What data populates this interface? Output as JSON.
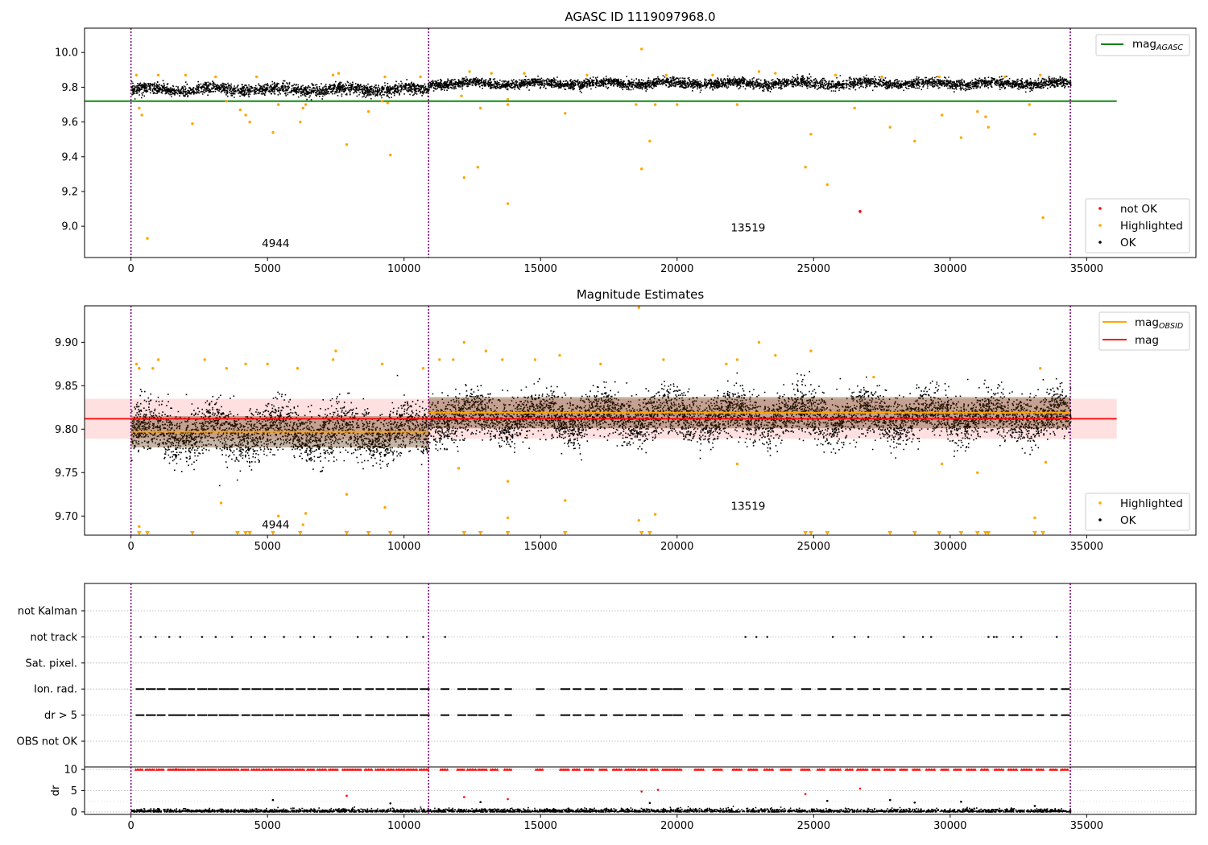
{
  "chart_data": [
    {
      "type": "scatter",
      "title": "AGASC ID 1119097968.0",
      "xlim": [
        -1700,
        39000
      ],
      "ylim": [
        8.82,
        10.14
      ],
      "xticks": [
        0,
        5000,
        10000,
        15000,
        20000,
        25000,
        30000,
        35000
      ],
      "xtick_labels": [
        "0",
        "5000",
        "10000",
        "15000",
        "20000",
        "25000",
        "30000",
        "35000"
      ],
      "yticks": [
        9.0,
        9.2,
        9.4,
        9.6,
        9.8,
        10.0
      ],
      "ytick_labels": [
        "9.0",
        "9.2",
        "9.4",
        "9.6",
        "9.8",
        "10.0"
      ],
      "obs_boundaries": [
        0,
        10900,
        34400
      ],
      "obs_labels": [
        {
          "text": "4944",
          "x": 5300,
          "y": 8.88
        },
        {
          "text": "13519",
          "x": 22600,
          "y": 8.97
        }
      ],
      "reference_lines": [
        {
          "name": "mag_AGASC",
          "y": 9.72,
          "x": [
            -1700,
            36100
          ],
          "color": "#008000"
        }
      ],
      "ok_bands": [
        {
          "x": [
            0,
            10900
          ],
          "center": 9.79,
          "spread": 0.03
        },
        {
          "x": [
            10900,
            34400
          ],
          "center": 9.825,
          "spread": 0.025
        }
      ],
      "series": [
        {
          "name": "not OK",
          "color": "#ff0000",
          "points": [
            [
              26700,
              9.085
            ]
          ]
        },
        {
          "name": "Highlighted",
          "color": "#ffa500",
          "points": [
            [
              600,
              8.93
            ],
            [
              2250,
              9.59
            ],
            [
              4350,
              9.6
            ],
            [
              5200,
              9.54
            ],
            [
              6200,
              9.6
            ],
            [
              7900,
              9.47
            ],
            [
              9500,
              9.41
            ],
            [
              12200,
              9.28
            ],
            [
              12700,
              9.34
            ],
            [
              13800,
              9.13
            ],
            [
              18700,
              9.33
            ],
            [
              19000,
              9.49
            ],
            [
              18700,
              10.02
            ],
            [
              15900,
              9.65
            ],
            [
              24700,
              9.34
            ],
            [
              24900,
              9.53
            ],
            [
              25500,
              9.24
            ],
            [
              27800,
              9.57
            ],
            [
              28700,
              9.49
            ],
            [
              30400,
              9.51
            ],
            [
              31400,
              9.57
            ],
            [
              33100,
              9.53
            ],
            [
              33400,
              9.05
            ],
            [
              300,
              9.68
            ],
            [
              400,
              9.64
            ],
            [
              3500,
              9.72
            ],
            [
              4200,
              9.64
            ],
            [
              4000,
              9.67
            ],
            [
              5400,
              9.7
            ],
            [
              6300,
              9.68
            ],
            [
              6400,
              9.7
            ],
            [
              8700,
              9.66
            ],
            [
              9400,
              9.71
            ],
            [
              9200,
              9.72
            ],
            [
              12100,
              9.75
            ],
            [
              12800,
              9.68
            ],
            [
              13800,
              9.7
            ],
            [
              13800,
              9.73
            ],
            [
              18500,
              9.7
            ],
            [
              19200,
              9.7
            ],
            [
              20000,
              9.7
            ],
            [
              22200,
              9.7
            ],
            [
              26500,
              9.68
            ],
            [
              29700,
              9.64
            ],
            [
              31000,
              9.66
            ],
            [
              31300,
              9.63
            ],
            [
              32900,
              9.7
            ],
            [
              200,
              9.87
            ],
            [
              1000,
              9.87
            ],
            [
              2000,
              9.87
            ],
            [
              3100,
              9.86
            ],
            [
              4600,
              9.86
            ],
            [
              7400,
              9.87
            ],
            [
              7600,
              9.88
            ],
            [
              9300,
              9.86
            ],
            [
              10600,
              9.86
            ],
            [
              12400,
              9.89
            ],
            [
              13200,
              9.88
            ],
            [
              14400,
              9.88
            ],
            [
              16700,
              9.87
            ],
            [
              19600,
              9.87
            ],
            [
              21300,
              9.87
            ],
            [
              23000,
              9.89
            ],
            [
              23600,
              9.88
            ],
            [
              25800,
              9.87
            ],
            [
              27500,
              9.86
            ],
            [
              29600,
              9.86
            ],
            [
              32000,
              9.86
            ],
            [
              33300,
              9.87
            ]
          ]
        },
        {
          "name": "OK",
          "color": "#000000",
          "points": []
        }
      ],
      "legend": {
        "position": "lower right",
        "entries": [
          "not OK",
          "Highlighted",
          "OK"
        ]
      },
      "legend_lines": {
        "position": "upper right",
        "entries": [
          {
            "label": "mag",
            "sub": "AGASC",
            "color": "#008000"
          }
        ]
      }
    },
    {
      "type": "scatter",
      "title": "Magnitude Estimates",
      "xlim": [
        -1700,
        39000
      ],
      "ylim": [
        9.678,
        9.942
      ],
      "xticks": [
        0,
        5000,
        10000,
        15000,
        20000,
        25000,
        30000,
        35000
      ],
      "xtick_labels": [
        "0",
        "5000",
        "10000",
        "15000",
        "20000",
        "25000",
        "30000",
        "35000"
      ],
      "yticks": [
        9.7,
        9.75,
        9.8,
        9.85,
        9.9
      ],
      "ytick_labels": [
        "9.70",
        "9.75",
        "9.80",
        "9.85",
        "9.90"
      ],
      "obs_boundaries": [
        0,
        10900,
        34400
      ],
      "obs_labels": [
        {
          "text": "4944",
          "x": 5300,
          "y": 9.686
        },
        {
          "text": "13519",
          "x": 22600,
          "y": 9.707
        }
      ],
      "mag_line": {
        "name": "mag",
        "y": 9.812,
        "band": [
          9.789,
          9.835
        ],
        "x": [
          -1700,
          36100
        ],
        "color": "#ff0000"
      },
      "obsid_lines": [
        {
          "name": "mag_OBSID",
          "x": [
            0,
            10900
          ],
          "y": 9.797,
          "color": "#ffa500"
        },
        {
          "name": "mag_OBSID",
          "x": [
            10900,
            34400
          ],
          "y": 9.819,
          "color": "#ffa500"
        }
      ],
      "ok_bands": [
        {
          "x": [
            0,
            10900
          ],
          "center": 9.797,
          "spread": 0.026
        },
        {
          "x": [
            10900,
            34400
          ],
          "center": 9.815,
          "spread": 0.024
        }
      ],
      "series": [
        {
          "name": "Highlighted",
          "color": "#ffa500",
          "points": [
            [
              200,
              9.875
            ],
            [
              300,
              9.87
            ],
            [
              800,
              9.87
            ],
            [
              1000,
              9.88
            ],
            [
              2700,
              9.88
            ],
            [
              3500,
              9.87
            ],
            [
              4200,
              9.875
            ],
            [
              5000,
              9.875
            ],
            [
              6100,
              9.87
            ],
            [
              7400,
              9.88
            ],
            [
              7500,
              9.89
            ],
            [
              9200,
              9.875
            ],
            [
              10700,
              9.87
            ],
            [
              11300,
              9.88
            ],
            [
              11800,
              9.88
            ],
            [
              12200,
              9.9
            ],
            [
              13000,
              9.89
            ],
            [
              13600,
              9.88
            ],
            [
              14800,
              9.88
            ],
            [
              15700,
              9.885
            ],
            [
              17200,
              9.875
            ],
            [
              18600,
              9.94
            ],
            [
              19500,
              9.88
            ],
            [
              21800,
              9.875
            ],
            [
              22200,
              9.88
            ],
            [
              23000,
              9.9
            ],
            [
              23600,
              9.885
            ],
            [
              24900,
              9.89
            ],
            [
              27200,
              9.86
            ],
            [
              33300,
              9.87
            ],
            [
              12000,
              9.755
            ],
            [
              13800,
              9.74
            ],
            [
              3300,
              9.715
            ],
            [
              7900,
              9.725
            ],
            [
              9300,
              9.71
            ],
            [
              15900,
              9.718
            ],
            [
              300,
              9.688
            ],
            [
              5400,
              9.7
            ],
            [
              6300,
              9.69
            ],
            [
              6400,
              9.703
            ],
            [
              13800,
              9.698
            ],
            [
              18600,
              9.695
            ],
            [
              19200,
              9.702
            ],
            [
              22200,
              9.76
            ],
            [
              29700,
              9.76
            ],
            [
              31000,
              9.75
            ],
            [
              33100,
              9.698
            ],
            [
              33500,
              9.762
            ]
          ]
        },
        {
          "name": "Highlighted (off-scale)",
          "color": "#ffa500",
          "points": [
            [
              300,
              9.68
            ],
            [
              600,
              9.68
            ],
            [
              2250,
              9.68
            ],
            [
              3900,
              9.68
            ],
            [
              4200,
              9.68
            ],
            [
              4350,
              9.68
            ],
            [
              5200,
              9.68
            ],
            [
              6200,
              9.68
            ],
            [
              7900,
              9.68
            ],
            [
              8700,
              9.68
            ],
            [
              9500,
              9.68
            ],
            [
              12200,
              9.68
            ],
            [
              12800,
              9.68
            ],
            [
              13800,
              9.68
            ],
            [
              15900,
              9.68
            ],
            [
              18700,
              9.68
            ],
            [
              19000,
              9.68
            ],
            [
              24700,
              9.68
            ],
            [
              24900,
              9.68
            ],
            [
              25500,
              9.68
            ],
            [
              27800,
              9.68
            ],
            [
              28700,
              9.68
            ],
            [
              29600,
              9.68
            ],
            [
              30400,
              9.68
            ],
            [
              31000,
              9.68
            ],
            [
              31300,
              9.68
            ],
            [
              31400,
              9.68
            ],
            [
              33100,
              9.68
            ],
            [
              33400,
              9.68
            ]
          ]
        },
        {
          "name": "OK",
          "color": "#000000",
          "points": []
        }
      ],
      "legend": {
        "position": "lower right",
        "entries": [
          "Highlighted",
          "OK"
        ]
      },
      "legend_lines": {
        "position": "upper right",
        "entries": [
          {
            "label": "mag",
            "sub": "OBSID",
            "color": "#ffa500"
          },
          {
            "label": "mag",
            "sub": "",
            "color": "#ff0000"
          }
        ]
      }
    },
    {
      "type": "scatter",
      "title": "",
      "xlim": [
        -1700,
        39000
      ],
      "flag_rows": [
        "not Kalman",
        "not track",
        "Sat. pixel.",
        "Ion. rad.",
        "dr > 5",
        "OBS not OK"
      ],
      "flag_points": {
        "not track": [
          350,
          900,
          1400,
          1800,
          2600,
          3100,
          3700,
          4400,
          4900,
          5600,
          6200,
          6700,
          7300,
          8300,
          8800,
          9400,
          10100,
          10700,
          11500,
          22500,
          22900,
          23300,
          25700,
          26500,
          27000,
          28300,
          29000,
          29300,
          31400,
          31600,
          31700,
          32300,
          32600,
          33900
        ],
        "Ion. rad.": "dense_segments",
        "dr > 5": "dense_segments"
      },
      "dr_panel": {
        "ylabel": "dr",
        "ylim": [
          -0.6,
          10.6
        ],
        "yticks": [
          0,
          5,
          10
        ],
        "ytick_labels": [
          "0",
          "5",
          "10"
        ],
        "high_points_red": [
          [
            7900,
            3.8
          ],
          [
            12200,
            3.5
          ],
          [
            13800,
            3.0
          ],
          [
            18700,
            4.8
          ],
          [
            19300,
            5.2
          ],
          [
            24700,
            4.2
          ],
          [
            26700,
            5.5
          ]
        ],
        "black_outliers": [
          [
            5200,
            2.8
          ],
          [
            9500,
            2.0
          ],
          [
            12800,
            2.3
          ],
          [
            19000,
            2.1
          ],
          [
            25500,
            2.6
          ],
          [
            27800,
            2.8
          ],
          [
            28700,
            2.2
          ],
          [
            30400,
            2.4
          ],
          [
            33100,
            1.4
          ]
        ]
      },
      "xticks": [
        0,
        5000,
        10000,
        15000,
        20000,
        25000,
        30000,
        35000
      ],
      "xtick_labels": [
        "0",
        "5000",
        "10000",
        "15000",
        "20000",
        "25000",
        "30000",
        "35000"
      ],
      "obs_boundaries": [
        0,
        10900,
        34400
      ]
    }
  ]
}
